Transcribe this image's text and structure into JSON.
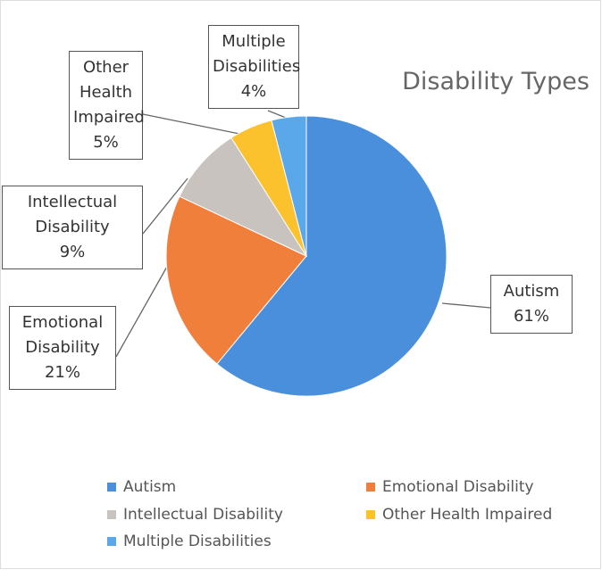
{
  "chart_data": {
    "type": "pie",
    "title": "Disability Types",
    "categories": [
      "Autism",
      "Emotional Disability",
      "Intellectual Disability",
      "Other Health Impaired",
      "Multiple Disabilities"
    ],
    "values": [
      61,
      21,
      9,
      5,
      4
    ],
    "value_labels": [
      "61%",
      "21%",
      "9%",
      "5%",
      "4%"
    ],
    "colors": [
      "#4a8fdc",
      "#f07f3c",
      "#c9c3bf",
      "#fcc22d",
      "#5aa7ea"
    ],
    "legend": "bottom"
  }
}
